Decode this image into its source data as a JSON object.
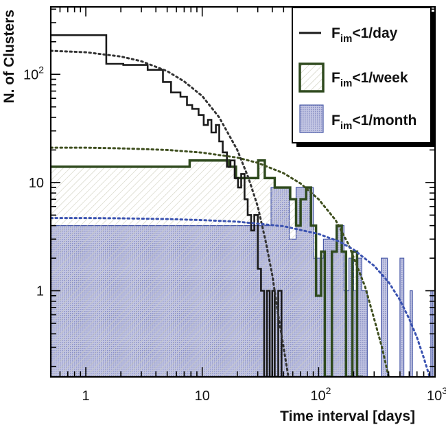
{
  "chart_data": {
    "type": "histogram",
    "xlabel": "Time interval [days]",
    "ylabel": "N. of Clusters",
    "xscale": "log",
    "yscale": "log",
    "xlim": [
      0.5,
      1000
    ],
    "ylim": [
      0.16,
      420
    ],
    "x_tick_labels": [
      {
        "value": 1,
        "base": "1",
        "exp": ""
      },
      {
        "value": 10,
        "base": "10",
        "exp": ""
      },
      {
        "value": 100,
        "base": "10",
        "exp": "2"
      },
      {
        "value": 1000,
        "base": "10",
        "exp": "3"
      }
    ],
    "y_tick_labels": [
      {
        "value": 1,
        "base": "1",
        "exp": ""
      },
      {
        "value": 10,
        "base": "10",
        "exp": ""
      },
      {
        "value": 100,
        "base": "10",
        "exp": "2"
      }
    ],
    "legend": {
      "position": "top-right",
      "entries": [
        {
          "base": "F",
          "sub": "im",
          "rest": "<1/day"
        },
        {
          "base": "F",
          "sub": "im",
          "rest": "<1/week"
        },
        {
          "base": "F",
          "sub": "im",
          "rest": "<1/month"
        }
      ]
    },
    "series": [
      {
        "key": "day",
        "style": "line",
        "color": "#1a1a1a",
        "steps": [
          [
            0.5,
            230
          ],
          [
            1.5,
            125
          ],
          [
            2.1,
            122
          ],
          [
            3.4,
            110
          ],
          [
            4.6,
            85
          ],
          [
            5.4,
            68
          ],
          [
            6.5,
            62
          ],
          [
            7.4,
            52
          ],
          [
            8.2,
            48
          ],
          [
            9.3,
            42
          ],
          [
            10.3,
            34
          ],
          [
            11.2,
            38
          ],
          [
            12,
            29
          ],
          [
            13.1,
            34
          ],
          [
            14,
            24
          ],
          [
            15,
            19
          ],
          [
            16.3,
            14
          ],
          [
            17.5,
            16
          ],
          [
            19,
            11
          ],
          [
            20.3,
            9
          ],
          [
            21.6,
            12
          ],
          [
            23.1,
            7
          ],
          [
            24.6,
            5
          ],
          [
            26.3,
            3.6
          ],
          [
            28,
            5
          ],
          [
            30,
            1.6
          ],
          [
            32,
            1
          ],
          [
            34,
            0.16
          ],
          [
            36,
            1
          ],
          [
            38,
            0.16
          ],
          [
            40,
            1
          ],
          [
            42,
            0.16
          ],
          [
            45,
            1
          ],
          [
            48,
            0.16
          ],
          [
            50,
            0.16
          ]
        ]
      },
      {
        "key": "week",
        "style": "outline-hatched",
        "color": "#2f4a1e",
        "hatch_color": "#c9c9b6",
        "steps": [
          [
            0.5,
            14
          ],
          [
            7.8,
            16
          ],
          [
            17,
            14
          ],
          [
            19.5,
            11
          ],
          [
            24,
            11
          ],
          [
            30.3,
            16
          ],
          [
            34.5,
            11
          ],
          [
            42,
            9
          ],
          [
            52,
            9
          ],
          [
            57,
            7
          ],
          [
            64,
            4
          ],
          [
            70,
            7
          ],
          [
            78,
            9
          ],
          [
            86,
            4
          ],
          [
            95,
            0.9
          ],
          [
            105,
            2.3
          ],
          [
            113,
            0.16
          ],
          [
            130,
            2.3
          ],
          [
            143,
            4
          ],
          [
            158,
            2.3
          ],
          [
            172,
            0.16
          ],
          [
            195,
            2.3
          ],
          [
            214,
            0.16
          ],
          [
            240,
            0.16
          ]
        ]
      },
      {
        "key": "month",
        "style": "filled",
        "color": "#4a5aa8",
        "fill": "#aeb2d6",
        "steps": [
          [
            0.5,
            4
          ],
          [
            39,
            9
          ],
          [
            56,
            3
          ],
          [
            64,
            9
          ],
          [
            90,
            2
          ],
          [
            110,
            3
          ],
          [
            145,
            4
          ],
          [
            165,
            1
          ],
          [
            182,
            2
          ],
          [
            200,
            1
          ],
          [
            215,
            2
          ],
          [
            235,
            1
          ],
          [
            262,
            0.16
          ],
          [
            345,
            2
          ],
          [
            390,
            0.16
          ],
          [
            500,
            2
          ],
          [
            540,
            0.16
          ],
          [
            610,
            1
          ],
          [
            640,
            0.16
          ],
          [
            920,
            1
          ],
          [
            960,
            0.16
          ]
        ]
      }
    ],
    "fits": [
      {
        "key": "day-fit",
        "color": "#333333",
        "points": [
          [
            0.5,
            165
          ],
          [
            1,
            160
          ],
          [
            2,
            146
          ],
          [
            3,
            132
          ],
          [
            5,
            107
          ],
          [
            7,
            86
          ],
          [
            10,
            63
          ],
          [
            14,
            40
          ],
          [
            20,
            20
          ],
          [
            25,
            11
          ],
          [
            30,
            6
          ],
          [
            35,
            2.9
          ],
          [
            40,
            1.4
          ],
          [
            45,
            0.6
          ],
          [
            50,
            0.3
          ],
          [
            55,
            0.16
          ]
        ]
      },
      {
        "key": "week-fit",
        "color": "#3f4f1f",
        "points": [
          [
            0.5,
            21
          ],
          [
            1,
            21
          ],
          [
            2,
            20.7
          ],
          [
            5,
            20
          ],
          [
            10,
            18.9
          ],
          [
            20,
            17
          ],
          [
            30,
            15.2
          ],
          [
            50,
            12.2
          ],
          [
            70,
            9.8
          ],
          [
            100,
            7
          ],
          [
            140,
            4.5
          ],
          [
            180,
            2.7
          ],
          [
            250,
            1.1
          ],
          [
            300,
            0.55
          ],
          [
            350,
            0.3
          ],
          [
            400,
            0.16
          ]
        ]
      },
      {
        "key": "month-fit",
        "color": "#3a52b0",
        "points": [
          [
            0.5,
            4.7
          ],
          [
            1,
            4.7
          ],
          [
            2,
            4.67
          ],
          [
            5,
            4.6
          ],
          [
            10,
            4.5
          ],
          [
            20,
            4.35
          ],
          [
            50,
            3.95
          ],
          [
            100,
            3.35
          ],
          [
            150,
            2.85
          ],
          [
            200,
            2.4
          ],
          [
            300,
            1.7
          ],
          [
            400,
            1.2
          ],
          [
            500,
            0.82
          ],
          [
            600,
            0.55
          ],
          [
            700,
            0.37
          ],
          [
            800,
            0.24
          ],
          [
            900,
            0.16
          ]
        ]
      }
    ]
  }
}
